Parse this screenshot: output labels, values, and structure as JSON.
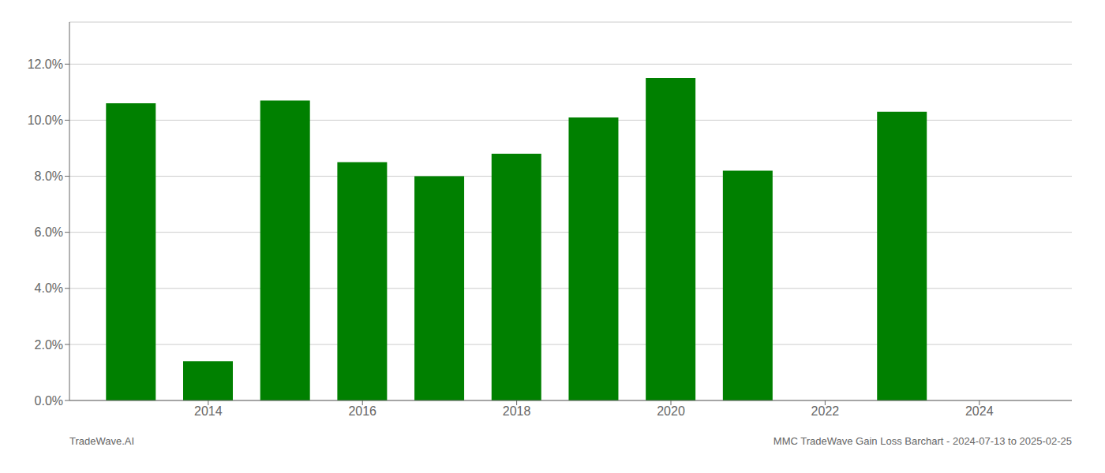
{
  "chart_data": {
    "type": "bar",
    "x": [
      2013,
      2014,
      2015,
      2016,
      2017,
      2018,
      2019,
      2020,
      2021,
      2023
    ],
    "values": [
      0.106,
      0.014,
      0.107,
      0.085,
      0.08,
      0.088,
      0.101,
      0.115,
      0.082,
      0.103
    ],
    "color": "#008000",
    "xlim": [
      2012.2,
      2025.2
    ],
    "xticks": [
      2014,
      2016,
      2018,
      2020,
      2022,
      2024
    ],
    "ylim": [
      0,
      0.135
    ],
    "yticks": [
      {
        "value": 0.0,
        "label": "0.0%"
      },
      {
        "value": 0.02,
        "label": "2.0%"
      },
      {
        "value": 0.04,
        "label": "4.0%"
      },
      {
        "value": 0.06,
        "label": "6.0%"
      },
      {
        "value": 0.08,
        "label": "8.0%"
      },
      {
        "value": 0.1,
        "label": "10.0%"
      },
      {
        "value": 0.12,
        "label": "12.0%"
      }
    ],
    "grid": true,
    "annotations": [
      "TradeWave.AI",
      "MMC TradeWave Gain Loss Barchart - 2024-07-13 to 2025-02-25"
    ]
  }
}
